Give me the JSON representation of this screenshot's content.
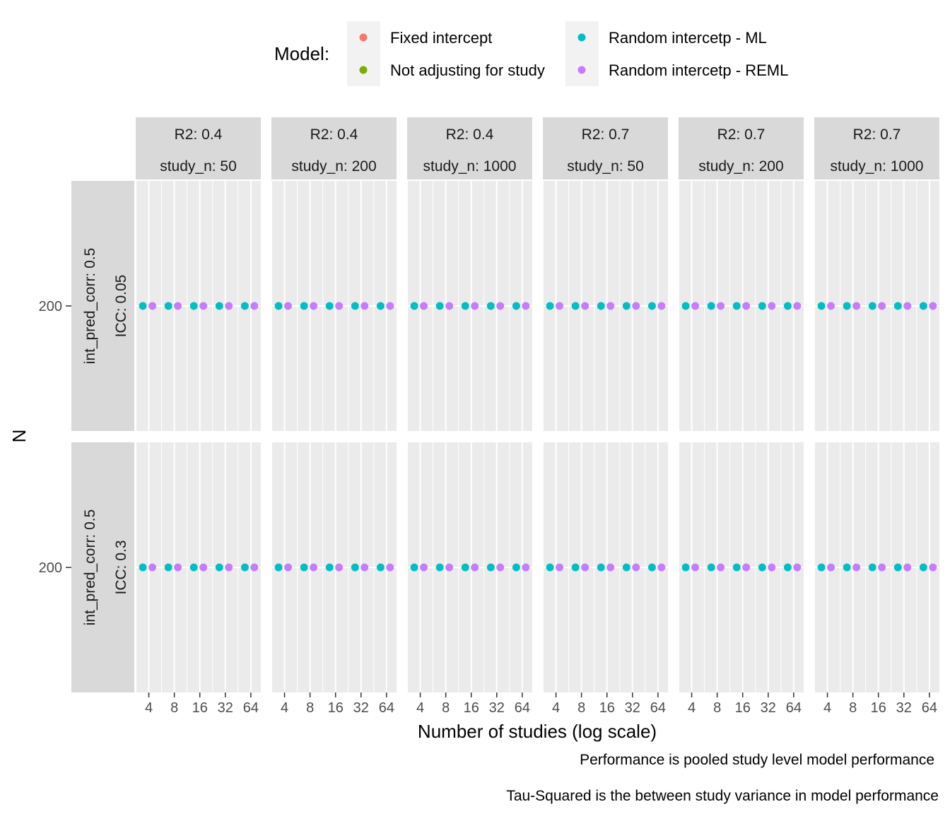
{
  "chart_data": {
    "type": "scatter",
    "legend": {
      "title": "Model:",
      "placement": "top",
      "entries": [
        {
          "label": "Fixed intercept",
          "color": "#F8766D"
        },
        {
          "label": "Not adjusting for study",
          "color": "#7CAE00"
        },
        {
          "label": "Random intercetp - ML",
          "color": "#00BFC4"
        },
        {
          "label": "Random intercetp - REML",
          "color": "#C77CFF"
        }
      ]
    },
    "xlabel": "Number of studies (log scale)",
    "ylabel": "N",
    "x_scale": "log2",
    "x_ticks": [
      4,
      8,
      16,
      32,
      64
    ],
    "y_ticks": [
      200
    ],
    "grid": true,
    "col_facets": [
      {
        "strip": [
          "R2: 0.4",
          "study_n: 50"
        ]
      },
      {
        "strip": [
          "R2: 0.4",
          "study_n: 200"
        ]
      },
      {
        "strip": [
          "R2: 0.4",
          "study_n: 1000"
        ]
      },
      {
        "strip": [
          "R2: 0.7",
          "study_n: 50"
        ]
      },
      {
        "strip": [
          "R2: 0.7",
          "study_n: 200"
        ]
      },
      {
        "strip": [
          "R2: 0.7",
          "study_n: 1000"
        ]
      }
    ],
    "row_facets": [
      {
        "strip": [
          "int_pred_corr: 0.5",
          "ICC: 0.05"
        ]
      },
      {
        "strip": [
          "int_pred_corr: 0.5",
          "ICC: 0.3"
        ]
      }
    ],
    "series": [
      {
        "name": "Random intercetp - ML",
        "color": "#00BFC4",
        "x": [
          3.4,
          6.8,
          13.6,
          27.2,
          54.4
        ],
        "y": [
          200,
          200,
          200,
          200,
          200
        ]
      },
      {
        "name": "Random intercetp - REML",
        "color": "#C77CFF",
        "x": [
          4.4,
          8.8,
          17.6,
          35.2,
          70.4
        ],
        "y": [
          200,
          200,
          200,
          200,
          200
        ]
      }
    ],
    "captions": [
      "Performance is pooled study level model performance",
      "Tau-Squared is the between study variance in model performance"
    ]
  }
}
